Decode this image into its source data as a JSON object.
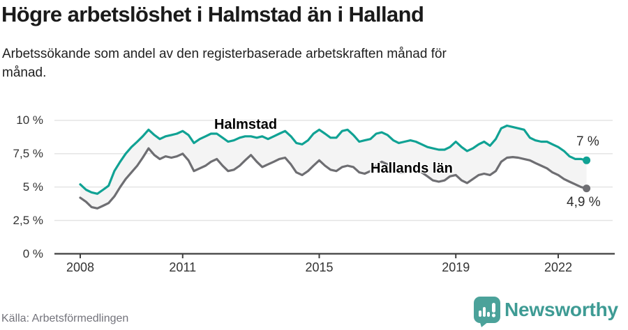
{
  "header": {
    "title": "Högre arbetslöshet i Halmstad än i Halland",
    "subtitle_lines": [
      "Arbetssökande som andel av den registerbaserade arbetskraften månad för",
      "månad."
    ]
  },
  "colors": {
    "halmstad_teal": "#10a294",
    "halland_gray": "#6e6e72",
    "grid": "#e4e4e4",
    "axis": "#3f3f3f",
    "band": "#f4f4f4",
    "tick_text": "#333333",
    "logo_teal": "#4ba29a",
    "brand_text_teal": "#3e9b94"
  },
  "chart_data": {
    "type": "line",
    "title": "Högre arbetslöshet i Halmstad än i Halland",
    "subtitle": "Arbetssökande som andel av den registerbaserade arbetskraften månad för månad.",
    "unit": "%",
    "grid": true,
    "legend_position": "direct-labels-on-lines",
    "x_axis": {
      "range": [
        2007.3,
        2023.6
      ],
      "ticks": [
        {
          "value": 2008,
          "label": "2008"
        },
        {
          "value": 2011,
          "label": "2011"
        },
        {
          "value": 2015,
          "label": "2015"
        },
        {
          "value": 2019,
          "label": "2019"
        },
        {
          "value": 2022,
          "label": "2022"
        }
      ]
    },
    "y_axis": {
      "range": [
        0,
        10
      ],
      "ticks": [
        {
          "value": 10,
          "label": "10 %"
        },
        {
          "value": 7.5,
          "label": "7,5 %"
        },
        {
          "value": 5,
          "label": "5 %"
        },
        {
          "value": 2.5,
          "label": "2,5 %"
        },
        {
          "value": 0,
          "label": "0 %"
        }
      ]
    },
    "band_fill_between_series": "#f4f4f4",
    "series": [
      {
        "name": "Halmstad",
        "color": "#10a294",
        "end_value": 7.0,
        "end_label": "7 %",
        "points": [
          [
            2008.0,
            5.2
          ],
          [
            2008.17,
            4.8
          ],
          [
            2008.33,
            4.6
          ],
          [
            2008.5,
            4.5
          ],
          [
            2008.67,
            4.8
          ],
          [
            2008.83,
            5.1
          ],
          [
            2009.0,
            6.2
          ],
          [
            2009.17,
            6.9
          ],
          [
            2009.33,
            7.5
          ],
          [
            2009.5,
            8.0
          ],
          [
            2009.67,
            8.4
          ],
          [
            2009.83,
            8.8
          ],
          [
            2010.0,
            9.3
          ],
          [
            2010.17,
            8.9
          ],
          [
            2010.33,
            8.6
          ],
          [
            2010.5,
            8.8
          ],
          [
            2010.67,
            8.9
          ],
          [
            2010.83,
            9.0
          ],
          [
            2011.0,
            9.2
          ],
          [
            2011.17,
            8.9
          ],
          [
            2011.33,
            8.3
          ],
          [
            2011.5,
            8.6
          ],
          [
            2011.67,
            8.8
          ],
          [
            2011.83,
            9.0
          ],
          [
            2012.0,
            9.0
          ],
          [
            2012.17,
            8.7
          ],
          [
            2012.33,
            8.4
          ],
          [
            2012.5,
            8.5
          ],
          [
            2012.67,
            8.7
          ],
          [
            2012.83,
            8.8
          ],
          [
            2013.0,
            8.8
          ],
          [
            2013.17,
            8.7
          ],
          [
            2013.33,
            8.8
          ],
          [
            2013.5,
            8.6
          ],
          [
            2013.67,
            8.8
          ],
          [
            2013.83,
            9.0
          ],
          [
            2014.0,
            9.2
          ],
          [
            2014.17,
            8.8
          ],
          [
            2014.33,
            8.3
          ],
          [
            2014.5,
            8.2
          ],
          [
            2014.67,
            8.5
          ],
          [
            2014.83,
            9.0
          ],
          [
            2015.0,
            9.3
          ],
          [
            2015.17,
            9.0
          ],
          [
            2015.33,
            8.7
          ],
          [
            2015.5,
            8.7
          ],
          [
            2015.67,
            9.2
          ],
          [
            2015.83,
            9.3
          ],
          [
            2016.0,
            8.9
          ],
          [
            2016.17,
            8.4
          ],
          [
            2016.33,
            8.5
          ],
          [
            2016.5,
            8.6
          ],
          [
            2016.67,
            9.0
          ],
          [
            2016.83,
            9.1
          ],
          [
            2017.0,
            8.9
          ],
          [
            2017.17,
            8.5
          ],
          [
            2017.33,
            8.3
          ],
          [
            2017.5,
            8.4
          ],
          [
            2017.67,
            8.5
          ],
          [
            2017.83,
            8.4
          ],
          [
            2018.0,
            8.2
          ],
          [
            2018.17,
            8.0
          ],
          [
            2018.33,
            7.9
          ],
          [
            2018.5,
            7.8
          ],
          [
            2018.67,
            7.8
          ],
          [
            2018.83,
            8.0
          ],
          [
            2019.0,
            8.4
          ],
          [
            2019.17,
            8.0
          ],
          [
            2019.33,
            7.7
          ],
          [
            2019.5,
            7.9
          ],
          [
            2019.67,
            8.2
          ],
          [
            2019.83,
            8.4
          ],
          [
            2020.0,
            8.1
          ],
          [
            2020.17,
            8.6
          ],
          [
            2020.33,
            9.4
          ],
          [
            2020.5,
            9.6
          ],
          [
            2020.67,
            9.5
          ],
          [
            2020.83,
            9.4
          ],
          [
            2021.0,
            9.3
          ],
          [
            2021.17,
            8.7
          ],
          [
            2021.33,
            8.5
          ],
          [
            2021.5,
            8.4
          ],
          [
            2021.67,
            8.4
          ],
          [
            2021.83,
            8.2
          ],
          [
            2022.0,
            8.0
          ],
          [
            2022.17,
            7.7
          ],
          [
            2022.33,
            7.3
          ],
          [
            2022.5,
            7.1
          ],
          [
            2022.67,
            7.1
          ],
          [
            2022.83,
            7.0
          ]
        ]
      },
      {
        "name": "Hallands län",
        "color": "#6e6e72",
        "end_value": 4.9,
        "end_label": "4,9 %",
        "points": [
          [
            2008.0,
            4.2
          ],
          [
            2008.17,
            3.9
          ],
          [
            2008.33,
            3.5
          ],
          [
            2008.5,
            3.4
          ],
          [
            2008.67,
            3.6
          ],
          [
            2008.83,
            3.8
          ],
          [
            2009.0,
            4.3
          ],
          [
            2009.17,
            5.0
          ],
          [
            2009.33,
            5.6
          ],
          [
            2009.5,
            6.1
          ],
          [
            2009.67,
            6.6
          ],
          [
            2009.83,
            7.2
          ],
          [
            2010.0,
            7.9
          ],
          [
            2010.17,
            7.4
          ],
          [
            2010.33,
            7.1
          ],
          [
            2010.5,
            7.3
          ],
          [
            2010.67,
            7.2
          ],
          [
            2010.83,
            7.3
          ],
          [
            2011.0,
            7.5
          ],
          [
            2011.17,
            7.0
          ],
          [
            2011.33,
            6.2
          ],
          [
            2011.5,
            6.4
          ],
          [
            2011.67,
            6.6
          ],
          [
            2011.83,
            6.9
          ],
          [
            2012.0,
            7.1
          ],
          [
            2012.17,
            6.6
          ],
          [
            2012.33,
            6.2
          ],
          [
            2012.5,
            6.3
          ],
          [
            2012.67,
            6.6
          ],
          [
            2012.83,
            7.0
          ],
          [
            2013.0,
            7.4
          ],
          [
            2013.17,
            6.9
          ],
          [
            2013.33,
            6.5
          ],
          [
            2013.5,
            6.7
          ],
          [
            2013.67,
            6.9
          ],
          [
            2013.83,
            7.1
          ],
          [
            2014.0,
            7.2
          ],
          [
            2014.17,
            6.7
          ],
          [
            2014.33,
            6.1
          ],
          [
            2014.5,
            5.9
          ],
          [
            2014.67,
            6.2
          ],
          [
            2014.83,
            6.6
          ],
          [
            2015.0,
            7.0
          ],
          [
            2015.17,
            6.6
          ],
          [
            2015.33,
            6.3
          ],
          [
            2015.5,
            6.2
          ],
          [
            2015.67,
            6.5
          ],
          [
            2015.83,
            6.6
          ],
          [
            2016.0,
            6.5
          ],
          [
            2016.17,
            6.1
          ],
          [
            2016.33,
            6.0
          ],
          [
            2016.5,
            6.2
          ],
          [
            2016.67,
            6.6
          ],
          [
            2016.83,
            6.9
          ],
          [
            2017.0,
            6.7
          ],
          [
            2017.17,
            6.3
          ],
          [
            2017.33,
            6.1
          ],
          [
            2017.5,
            6.1
          ],
          [
            2017.67,
            6.3
          ],
          [
            2017.83,
            6.2
          ],
          [
            2018.0,
            6.1
          ],
          [
            2018.17,
            5.8
          ],
          [
            2018.33,
            5.5
          ],
          [
            2018.5,
            5.4
          ],
          [
            2018.67,
            5.5
          ],
          [
            2018.83,
            5.8
          ],
          [
            2019.0,
            5.9
          ],
          [
            2019.17,
            5.5
          ],
          [
            2019.33,
            5.3
          ],
          [
            2019.5,
            5.6
          ],
          [
            2019.67,
            5.9
          ],
          [
            2019.83,
            6.0
          ],
          [
            2020.0,
            5.9
          ],
          [
            2020.17,
            6.2
          ],
          [
            2020.33,
            6.9
          ],
          [
            2020.5,
            7.2
          ],
          [
            2020.67,
            7.25
          ],
          [
            2020.83,
            7.2
          ],
          [
            2021.0,
            7.1
          ],
          [
            2021.17,
            7.0
          ],
          [
            2021.33,
            6.8
          ],
          [
            2021.5,
            6.6
          ],
          [
            2021.67,
            6.4
          ],
          [
            2021.83,
            6.1
          ],
          [
            2022.0,
            5.9
          ],
          [
            2022.17,
            5.6
          ],
          [
            2022.33,
            5.4
          ],
          [
            2022.5,
            5.2
          ],
          [
            2022.67,
            5.0
          ],
          [
            2022.83,
            4.9
          ]
        ]
      }
    ]
  },
  "footer": {
    "source": "Källa: Arbetsförmedlingen",
    "brand": "Newsworthy"
  }
}
